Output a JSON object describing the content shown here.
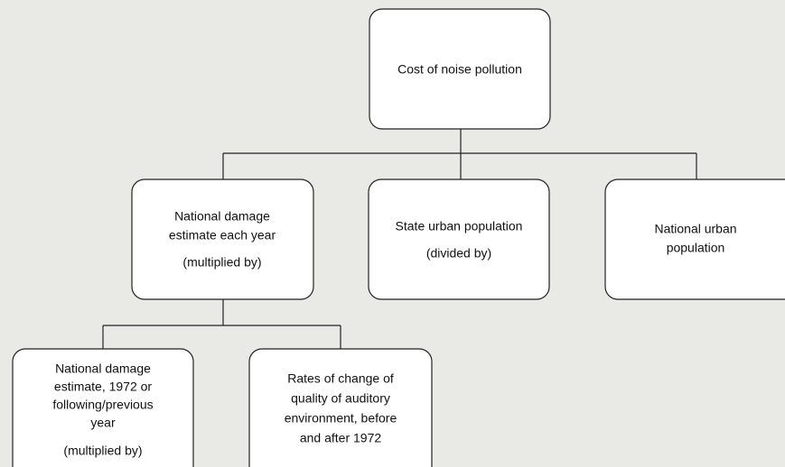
{
  "nodes": [
    {
      "lines": [
        "Cost of noise pollution"
      ]
    },
    {
      "lines": [
        "National damage",
        "estimate each year",
        "(multiplied by)"
      ]
    },
    {
      "lines": [
        "State urban population",
        "(divided by)"
      ]
    },
    {
      "lines": [
        "National urban",
        "population"
      ]
    },
    {
      "lines": [
        "National damage",
        "estimate, 1972 or",
        "following/previous",
        "year",
        "(multiplied by)"
      ]
    },
    {
      "lines": [
        "Rates of change of",
        "quality of auditory",
        "environment, before",
        "and after 1972"
      ]
    }
  ]
}
